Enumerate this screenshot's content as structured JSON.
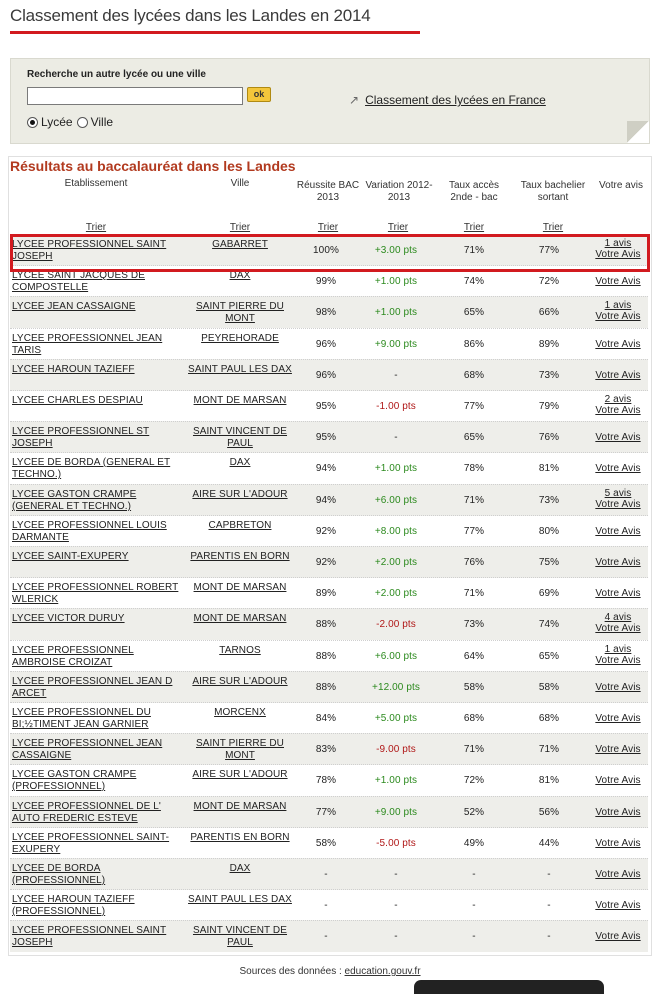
{
  "page_title": "Classement des lycées dans les Landes en 2014",
  "search": {
    "label": "Recherche un autre lycée ou une ville",
    "value": "",
    "ok_label": "ok",
    "radio_lycee": "Lycée",
    "radio_ville": "Ville",
    "france_link": "Classement des lycées en France"
  },
  "results": {
    "title": "Résultats au baccalauréat dans les Landes",
    "headers": {
      "etab": "Etablissement",
      "ville": "Ville",
      "bac": "Réussite BAC 2013",
      "var": "Variation 2012-2013",
      "acces": "Taux accès 2nde - bac",
      "bach": "Taux bachelier sortant",
      "avis": "Votre avis"
    },
    "trier": "Trier",
    "rows": [
      {
        "name": "LYCEE PROFESSIONNEL SAINT JOSEPH",
        "city": "GABARRET",
        "bac": "100%",
        "var": "+3.00 pts",
        "acc": "71%",
        "bach": "77%",
        "avis_count": "1 avis",
        "avis": "Votre Avis"
      },
      {
        "name": "LYCEE SAINT JACQUES DE COMPOSTELLE",
        "city": "DAX",
        "bac": "99%",
        "var": "+1.00 pts",
        "acc": "74%",
        "bach": "72%",
        "avis_count": "",
        "avis": "Votre Avis"
      },
      {
        "name": "LYCEE JEAN CASSAIGNE",
        "city": "SAINT PIERRE DU MONT",
        "bac": "98%",
        "var": "+1.00 pts",
        "acc": "65%",
        "bach": "66%",
        "avis_count": "1 avis",
        "avis": "Votre Avis"
      },
      {
        "name": "LYCEE PROFESSIONNEL JEAN TARIS",
        "city": "PEYREHORADE",
        "bac": "96%",
        "var": "+9.00 pts",
        "acc": "86%",
        "bach": "89%",
        "avis_count": "",
        "avis": "Votre Avis"
      },
      {
        "name": "LYCEE HAROUN TAZIEFF",
        "city": "SAINT PAUL LES DAX",
        "bac": "96%",
        "var": "-",
        "acc": "68%",
        "bach": "73%",
        "avis_count": "",
        "avis": "Votre Avis"
      },
      {
        "name": "LYCEE CHARLES DESPIAU",
        "city": "MONT DE MARSAN",
        "bac": "95%",
        "var": "-1.00 pts",
        "acc": "77%",
        "bach": "79%",
        "avis_count": "2 avis",
        "avis": "Votre Avis"
      },
      {
        "name": "LYCEE PROFESSIONNEL ST JOSEPH",
        "city": "SAINT VINCENT DE PAUL",
        "bac": "95%",
        "var": "-",
        "acc": "65%",
        "bach": "76%",
        "avis_count": "",
        "avis": "Votre Avis"
      },
      {
        "name": "LYCEE DE BORDA (GENERAL ET TECHNO.)",
        "city": "DAX",
        "bac": "94%",
        "var": "+1.00 pts",
        "acc": "78%",
        "bach": "81%",
        "avis_count": "",
        "avis": "Votre Avis"
      },
      {
        "name": "LYCEE GASTON CRAMPE (GENERAL ET TECHNO.)",
        "city": "AIRE SUR L'ADOUR",
        "bac": "94%",
        "var": "+6.00 pts",
        "acc": "71%",
        "bach": "73%",
        "avis_count": "5 avis",
        "avis": "Votre Avis"
      },
      {
        "name": "LYCEE PROFESSIONNEL LOUIS DARMANTE",
        "city": "CAPBRETON",
        "bac": "92%",
        "var": "+8.00 pts",
        "acc": "77%",
        "bach": "80%",
        "avis_count": "",
        "avis": "Votre Avis"
      },
      {
        "name": "LYCEE SAINT-EXUPERY",
        "city": "PARENTIS EN BORN",
        "bac": "92%",
        "var": "+2.00 pts",
        "acc": "76%",
        "bach": "75%",
        "avis_count": "",
        "avis": "Votre Avis"
      },
      {
        "name": "LYCEE PROFESSIONNEL ROBERT WLERICK",
        "city": "MONT DE MARSAN",
        "bac": "89%",
        "var": "+2.00 pts",
        "acc": "71%",
        "bach": "69%",
        "avis_count": "",
        "avis": "Votre Avis"
      },
      {
        "name": "LYCEE VICTOR DURUY",
        "city": "MONT DE MARSAN",
        "bac": "88%",
        "var": "-2.00 pts",
        "acc": "73%",
        "bach": "74%",
        "avis_count": "4 avis",
        "avis": "Votre Avis"
      },
      {
        "name": "LYCEE PROFESSIONNEL AMBROISE CROIZAT",
        "city": "TARNOS",
        "bac": "88%",
        "var": "+6.00 pts",
        "acc": "64%",
        "bach": "65%",
        "avis_count": "1 avis",
        "avis": "Votre Avis"
      },
      {
        "name": "LYCEE PROFESSIONNEL JEAN D ARCET",
        "city": "AIRE SUR L'ADOUR",
        "bac": "88%",
        "var": "+12.00 pts",
        "acc": "58%",
        "bach": "58%",
        "avis_count": "",
        "avis": "Votre Avis"
      },
      {
        "name": "LYCEE PROFESSIONNEL DU BI;½TIMENT JEAN GARNIER",
        "city": "MORCENX",
        "bac": "84%",
        "var": "+5.00 pts",
        "acc": "68%",
        "bach": "68%",
        "avis_count": "",
        "avis": "Votre Avis"
      },
      {
        "name": "LYCEE PROFESSIONNEL JEAN CASSAIGNE",
        "city": "SAINT PIERRE DU MONT",
        "bac": "83%",
        "var": "-9.00 pts",
        "acc": "71%",
        "bach": "71%",
        "avis_count": "",
        "avis": "Votre Avis"
      },
      {
        "name": "LYCEE GASTON CRAMPE (PROFESSIONNEL)",
        "city": "AIRE SUR L'ADOUR",
        "bac": "78%",
        "var": "+1.00 pts",
        "acc": "72%",
        "bach": "81%",
        "avis_count": "",
        "avis": "Votre Avis"
      },
      {
        "name": "LYCEE PROFESSIONNEL DE L' AUTO FREDERIC ESTEVE",
        "city": "MONT DE MARSAN",
        "bac": "77%",
        "var": "+9.00 pts",
        "acc": "52%",
        "bach": "56%",
        "avis_count": "",
        "avis": "Votre Avis"
      },
      {
        "name": "LYCEE PROFESSIONNEL SAINT-EXUPERY",
        "city": "PARENTIS EN BORN",
        "bac": "58%",
        "var": "-5.00 pts",
        "acc": "49%",
        "bach": "44%",
        "avis_count": "",
        "avis": "Votre Avis"
      },
      {
        "name": "LYCEE DE BORDA (PROFESSIONNEL)",
        "city": "DAX",
        "bac": "-",
        "var": "-",
        "acc": "-",
        "bach": "-",
        "avis_count": "",
        "avis": "Votre Avis"
      },
      {
        "name": "LYCEE HAROUN TAZIEFF (PROFESSIONNEL)",
        "city": "SAINT PAUL LES DAX",
        "bac": "-",
        "var": "-",
        "acc": "-",
        "bach": "-",
        "avis_count": "",
        "avis": "Votre Avis"
      },
      {
        "name": "LYCEE PROFESSIONNEL SAINT JOSEPH",
        "city": "SAINT VINCENT DE PAUL",
        "bac": "-",
        "var": "-",
        "acc": "-",
        "bach": "-",
        "avis_count": "",
        "avis": "Votre Avis"
      }
    ]
  },
  "sources": {
    "label": "Sources des données :",
    "link": "education.gouv.fr"
  },
  "colors": {
    "accent_red": "#d21a1f",
    "title_brown": "#b23a1f",
    "positive_green": "#2c8a1e",
    "negative_red": "#b01818"
  },
  "icons": {
    "france_link_icon": "arrow-up-right-icon"
  }
}
